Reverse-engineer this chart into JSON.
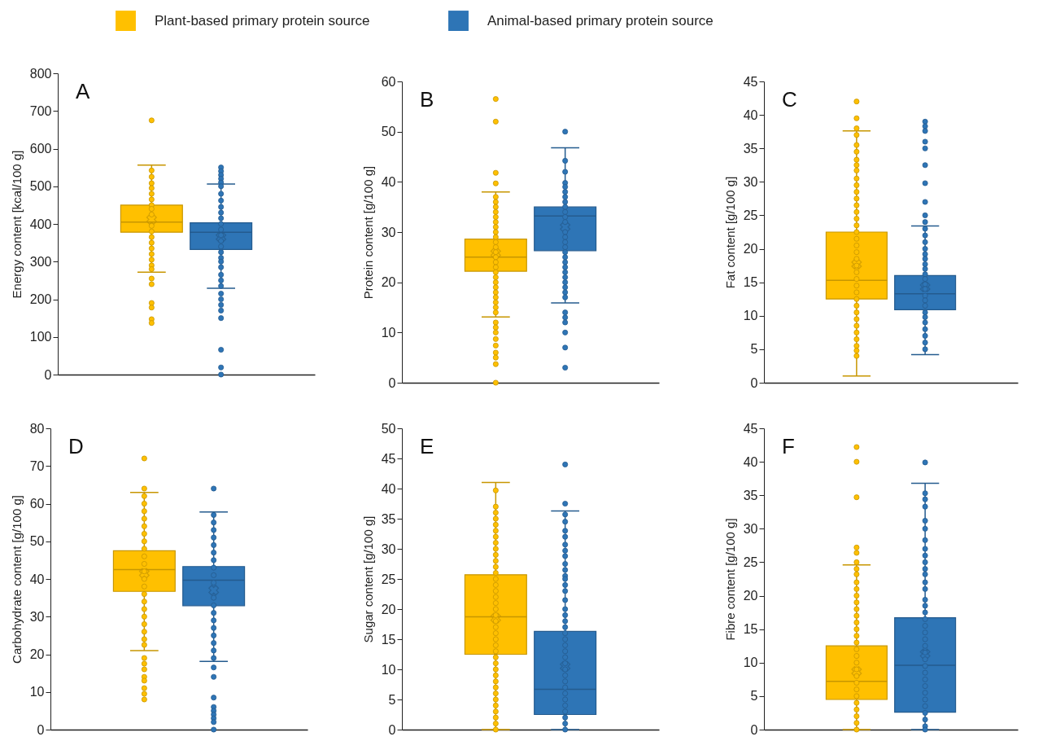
{
  "chart_data": [
    {
      "type": "box",
      "annotations": [
        "A"
      ],
      "ylabel": "Energy content [kcal/100 g]",
      "ylim": [
        0,
        800
      ],
      "yticks": [
        0,
        100,
        200,
        300,
        400,
        500,
        600,
        700,
        800
      ],
      "categories": [
        null
      ],
      "legend": "top",
      "series": [
        {
          "name": "Plant-based primary protein source",
          "color": "#ffc000",
          "boxes": [
            {
              "low": 272,
              "q1": 378,
              "median": 405,
              "q3": 450,
              "high": 556,
              "mean": 412,
              "outliers": [
                675,
                255,
                240,
                190,
                178,
                147,
                137
              ]
            }
          ]
        },
        {
          "name": "Animal-based primary protein source",
          "color": "#2e75b6",
          "boxes": [
            {
              "low": 229,
              "q1": 332,
              "median": 378,
              "q3": 403,
              "high": 506,
              "mean": 365,
              "outliers": [
                550,
                540,
                530,
                520,
                510,
                215,
                200,
                185,
                170,
                150,
                66,
                19,
                0
              ]
            }
          ]
        },
        {
          "type": "scatter",
          "color": "#ffc000",
          "x": [
            null,
            null,
            null,
            null,
            null,
            null,
            null,
            null,
            null,
            null,
            null,
            null,
            null,
            null,
            null,
            null,
            null,
            null
          ],
          "values": [
            542,
            525,
            508,
            495,
            480,
            465,
            450,
            440,
            425,
            395,
            380,
            365,
            350,
            335,
            320,
            305,
            290,
            280
          ]
        },
        {
          "type": "scatter",
          "color": "#2e75b6",
          "x": [
            null,
            null,
            null,
            null,
            null,
            null,
            null,
            null,
            null,
            null,
            null,
            null,
            null,
            null,
            null,
            null,
            null,
            null
          ],
          "values": [
            500,
            480,
            462,
            445,
            430,
            415,
            400,
            385,
            370,
            355,
            340,
            325,
            310,
            300,
            285,
            265,
            250,
            235
          ]
        }
      ]
    },
    {
      "type": "box",
      "annotations": [
        "B"
      ],
      "ylabel": "Protein content [g/100 g]",
      "ylim": [
        0,
        60
      ],
      "yticks": [
        0,
        10,
        20,
        30,
        40,
        50,
        60
      ],
      "categories": [
        null
      ],
      "series": [
        {
          "color": "#ffc000",
          "boxes": [
            {
              "low": 13.1,
              "q1": 22.2,
              "median": 25,
              "q3": 28.6,
              "high": 38,
              "mean": 25.8,
              "outliers": [
                56.5,
                52,
                41.8,
                39.7,
                12,
                11,
                10,
                8.7,
                7.4,
                6,
                5,
                3.7,
                0
              ]
            }
          ]
        },
        {
          "color": "#2e75b6",
          "boxes": [
            {
              "low": 15.9,
              "q1": 26.3,
              "median": 33.2,
              "q3": 35,
              "high": 46.8,
              "mean": 31,
              "outliers": [
                50,
                14,
                13,
                12,
                10,
                7,
                3
              ]
            }
          ]
        },
        {
          "type": "scatter",
          "color": "#ffc000",
          "x": [
            null,
            null,
            null,
            null,
            null,
            null,
            null,
            null,
            null,
            null,
            null,
            null,
            null,
            null,
            null,
            null,
            null,
            null,
            null,
            null,
            null,
            null,
            null,
            null
          ],
          "values": [
            37,
            36,
            35,
            34,
            33,
            32,
            31,
            30,
            29,
            28,
            27,
            26,
            25,
            24,
            23,
            22,
            21,
            20,
            19,
            18,
            17,
            16,
            15,
            14
          ]
        },
        {
          "type": "scatter",
          "color": "#2e75b6",
          "x": [
            null,
            null,
            null,
            null,
            null,
            null,
            null,
            null,
            null,
            null,
            null,
            null,
            null,
            null,
            null,
            null,
            null,
            null,
            null,
            null,
            null,
            null,
            null,
            null,
            null
          ],
          "values": [
            44.2,
            42,
            39.8,
            39,
            38,
            37,
            36,
            35,
            34,
            33,
            32,
            30,
            29,
            28,
            27,
            26,
            25,
            24,
            23,
            22,
            21,
            20,
            19,
            18,
            17
          ]
        }
      ]
    },
    {
      "type": "box",
      "annotations": [
        "C"
      ],
      "ylabel": "Fat content [g/100 g]",
      "ylim": [
        0,
        45
      ],
      "yticks": [
        0,
        5,
        10,
        15,
        20,
        25,
        30,
        35,
        40,
        45
      ],
      "categories": [
        null
      ],
      "series": [
        {
          "color": "#ffc000",
          "boxes": [
            {
              "low": 1,
              "q1": 12.5,
              "median": 15.3,
              "q3": 22.5,
              "high": 37.6,
              "mean": 17.7,
              "outliers": [
                42,
                39.5,
                38
              ]
            }
          ]
        },
        {
          "color": "#2e75b6",
          "boxes": [
            {
              "low": 4.2,
              "q1": 10.9,
              "median": 13.3,
              "q3": 16,
              "high": 23.4,
              "mean": 14.3,
              "outliers": [
                39,
                38.3,
                37.6,
                36,
                35,
                32.5,
                29.8,
                27,
                25,
                24
              ]
            }
          ]
        },
        {
          "type": "scatter",
          "color": "#ffc000",
          "x": [
            null,
            null,
            null,
            null,
            null,
            null,
            null,
            null,
            null,
            null,
            null,
            null,
            null,
            null,
            null,
            null,
            null,
            null,
            null,
            null,
            null,
            null,
            null,
            null,
            null,
            null,
            null,
            null,
            null,
            null,
            null,
            null,
            null,
            null
          ],
          "values": [
            37,
            35.5,
            34.5,
            33.3,
            32.5,
            31.7,
            30.5,
            29.5,
            28.5,
            27.5,
            26.5,
            25.5,
            24.5,
            23.5,
            22.5,
            21.5,
            20.5,
            19.5,
            18.5,
            17.5,
            16.5,
            15.5,
            14.5,
            13.5,
            12.5,
            11.5,
            10.5,
            9.5,
            8.5,
            7.5,
            6.5,
            5.5,
            4.8,
            4
          ]
        },
        {
          "type": "scatter",
          "color": "#2e75b6",
          "x": [
            null,
            null,
            null,
            null,
            null,
            null,
            null,
            null,
            null,
            null,
            null,
            null,
            null,
            null,
            null,
            null,
            null,
            null,
            null,
            null,
            null,
            null
          ],
          "values": [
            23,
            22,
            21,
            20,
            19.2,
            18.5,
            17.7,
            17,
            16.2,
            15.5,
            14.7,
            14,
            13,
            12.3,
            11.5,
            10.5,
            9.8,
            9,
            8,
            7,
            6,
            5
          ]
        }
      ]
    },
    {
      "type": "box",
      "annotations": [
        "D"
      ],
      "ylabel": "Carbohydrate content [g/100 g]",
      "ylim": [
        0,
        80
      ],
      "yticks": [
        0,
        10,
        20,
        30,
        40,
        50,
        60,
        70,
        80
      ],
      "categories": [
        null
      ],
      "series": [
        {
          "color": "#ffc000",
          "boxes": [
            {
              "low": 21,
              "q1": 36.7,
              "median": 42.5,
              "q3": 47.5,
              "high": 63,
              "mean": 41.5,
              "outliers": [
                72,
                64,
                19,
                17.5,
                16,
                14,
                13,
                11,
                9.5,
                8
              ]
            }
          ]
        },
        {
          "color": "#2e75b6",
          "boxes": [
            {
              "low": 18.1,
              "q1": 32.9,
              "median": 39.7,
              "q3": 43.3,
              "high": 57.8,
              "mean": 37,
              "outliers": [
                64,
                16.5,
                14,
                8.5,
                6,
                5,
                4,
                3,
                2,
                0
              ]
            }
          ]
        },
        {
          "type": "scatter",
          "color": "#ffc000",
          "x": [
            null,
            null,
            null,
            null,
            null,
            null,
            null,
            null,
            null,
            null,
            null,
            null,
            null,
            null,
            null,
            null,
            null,
            null,
            null,
            null,
            null
          ],
          "values": [
            62,
            60,
            58,
            56,
            54,
            52,
            50,
            48,
            46,
            44,
            42,
            40,
            38,
            36,
            34,
            32,
            30,
            28,
            26,
            24,
            22.5
          ]
        },
        {
          "type": "scatter",
          "color": "#2e75b6",
          "x": [
            null,
            null,
            null,
            null,
            null,
            null,
            null,
            null,
            null,
            null,
            null,
            null,
            null,
            null,
            null,
            null,
            null,
            null,
            null
          ],
          "values": [
            57,
            55,
            53,
            51,
            49,
            47,
            45,
            43,
            41,
            39,
            35,
            33,
            31,
            29,
            27,
            25,
            23,
            21,
            19
          ]
        }
      ]
    },
    {
      "type": "box",
      "annotations": [
        "E"
      ],
      "ylabel": "Sugar content [g/100 g]",
      "ylim": [
        0,
        50
      ],
      "yticks": [
        0,
        5,
        10,
        15,
        20,
        25,
        30,
        35,
        40,
        45,
        50
      ],
      "categories": [
        null
      ],
      "series": [
        {
          "color": "#ffc000",
          "boxes": [
            {
              "low": 0,
              "q1": 12.5,
              "median": 18.7,
              "q3": 25.7,
              "high": 41,
              "mean": 18.5
            }
          ]
        },
        {
          "color": "#2e75b6",
          "boxes": [
            {
              "low": 0,
              "q1": 2.5,
              "median": 6.7,
              "q3": 16.3,
              "high": 36.3,
              "mean": 10.5,
              "outliers": [
                44,
                37.5
              ]
            }
          ]
        },
        {
          "type": "scatter",
          "color": "#ffc000",
          "x": [
            null,
            null,
            null,
            null,
            null,
            null,
            null,
            null,
            null,
            null,
            null,
            null,
            null,
            null,
            null,
            null,
            null,
            null,
            null,
            null,
            null,
            null,
            null,
            null,
            null,
            null,
            null,
            null,
            null,
            null,
            null,
            null,
            null,
            null,
            null,
            null,
            null,
            null,
            null
          ],
          "values": [
            39.7,
            37,
            36,
            35,
            34,
            33,
            32,
            31,
            30,
            29,
            28,
            27,
            26,
            25,
            24,
            23,
            22,
            21,
            20,
            19,
            18,
            17,
            16,
            15,
            14,
            13,
            12,
            11,
            10,
            9,
            8,
            7,
            6,
            5,
            4,
            3,
            2,
            1,
            0
          ]
        },
        {
          "type": "scatter",
          "color": "#2e75b6",
          "x": [
            null,
            null,
            null,
            null,
            null,
            null,
            null,
            null,
            null,
            null,
            null,
            null,
            null,
            null,
            null,
            null,
            null,
            null,
            null,
            null,
            null,
            null,
            null,
            null,
            null,
            null,
            null,
            null,
            null,
            null,
            null,
            null,
            null,
            null,
            null
          ],
          "values": [
            35.7,
            34.5,
            33,
            32,
            30.7,
            29.7,
            28.8,
            27.5,
            26.5,
            25.5,
            25,
            24,
            23,
            21.5,
            20,
            19,
            18,
            17,
            16,
            15,
            14,
            13,
            12,
            11,
            10,
            9,
            8,
            7,
            6,
            5,
            4,
            3,
            2,
            1,
            0
          ]
        }
      ]
    },
    {
      "type": "box",
      "annotations": [
        "F"
      ],
      "ylabel": "Fibre content [g/100 g]",
      "ylim": [
        0,
        45
      ],
      "yticks": [
        0,
        5,
        10,
        15,
        20,
        25,
        30,
        35,
        40,
        45
      ],
      "categories": [
        null
      ],
      "series": [
        {
          "color": "#ffc000",
          "boxes": [
            {
              "low": 0,
              "q1": 4.5,
              "median": 7.2,
              "q3": 12.5,
              "high": 24.6,
              "mean": 8.7,
              "outliers": [
                42.2,
                40,
                34.7,
                27.2,
                26.4,
                25
              ]
            }
          ]
        },
        {
          "color": "#2e75b6",
          "boxes": [
            {
              "low": 0,
              "q1": 2.6,
              "median": 9.6,
              "q3": 16.7,
              "high": 36.8,
              "mean": 11.3,
              "outliers": [
                39.9
              ]
            }
          ]
        },
        {
          "type": "scatter",
          "color": "#ffc000",
          "x": [
            null,
            null,
            null,
            null,
            null,
            null,
            null,
            null,
            null,
            null,
            null,
            null,
            null,
            null,
            null,
            null,
            null,
            null,
            null,
            null,
            null,
            null,
            null,
            null,
            null
          ],
          "values": [
            24,
            23.2,
            22,
            21,
            20,
            19,
            18,
            17,
            16,
            15,
            14,
            13,
            12,
            11,
            10,
            9,
            8,
            7,
            6,
            5,
            4,
            3,
            2,
            1,
            0
          ]
        },
        {
          "type": "scatter",
          "color": "#2e75b6",
          "x": [
            null,
            null,
            null,
            null,
            null,
            null,
            null,
            null,
            null,
            null,
            null,
            null,
            null,
            null,
            null,
            null,
            null,
            null,
            null,
            null,
            null,
            null,
            null,
            null,
            null,
            null,
            null,
            null,
            null,
            null,
            null,
            null,
            null,
            null
          ],
          "values": [
            35.3,
            34.4,
            33.3,
            31.2,
            30,
            28.3,
            27,
            26,
            25,
            24,
            23.2,
            22,
            21,
            19.4,
            18.5,
            17.5,
            16.5,
            15.5,
            14.5,
            13.5,
            12.5,
            11.5,
            10.5,
            9.5,
            8.5,
            7.5,
            6.5,
            5.5,
            4.5,
            3.5,
            2.5,
            1.5,
            0.5,
            0
          ]
        }
      ]
    }
  ]
}
